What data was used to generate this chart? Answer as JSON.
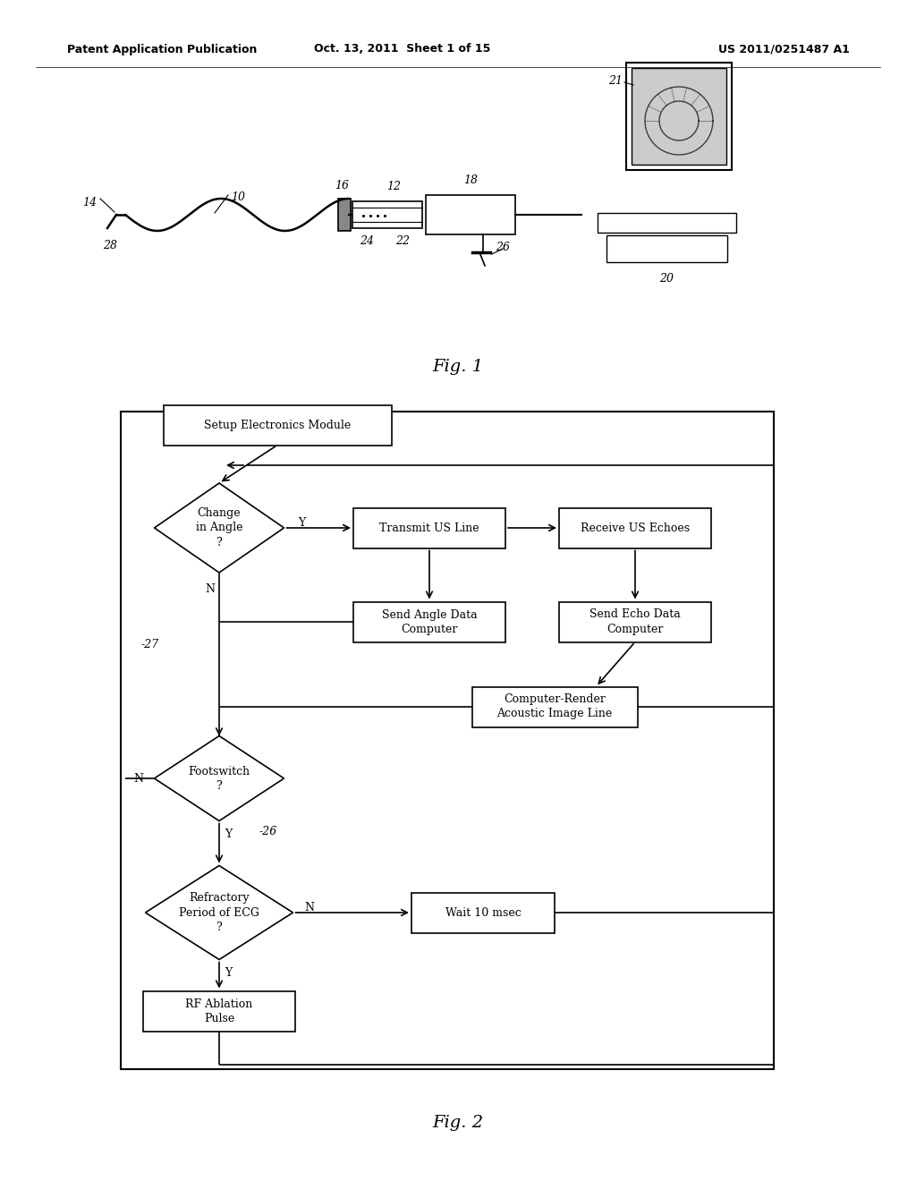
{
  "background_color": "#ffffff",
  "header": {
    "left": "Patent Application Publication",
    "center": "Oct. 13, 2011  Sheet 1 of 15",
    "right": "US 2011/0251487 A1"
  },
  "fig1_label": "Fig. 1",
  "fig2_label": "Fig. 2"
}
